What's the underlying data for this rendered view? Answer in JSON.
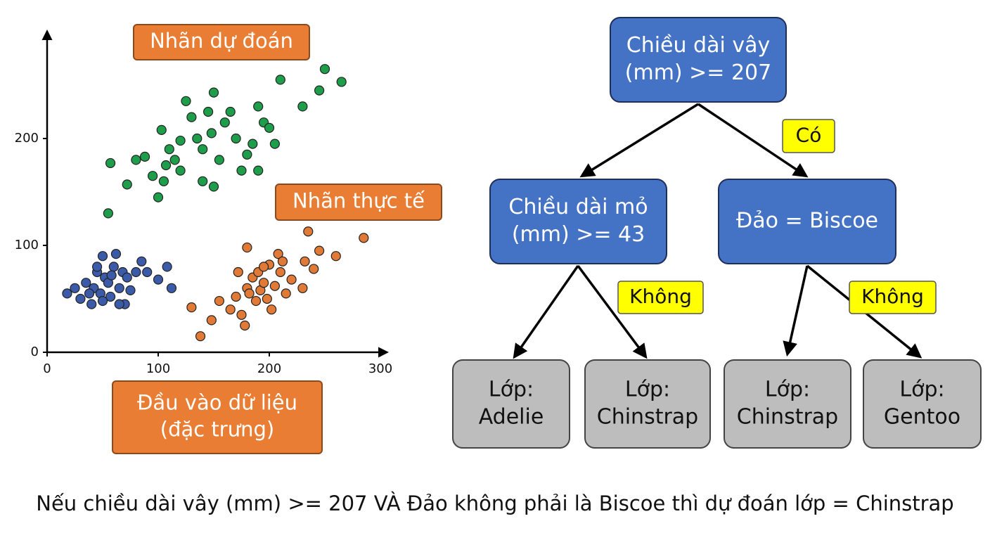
{
  "chart_data": {
    "type": "scatter",
    "xlim": [
      0,
      305
    ],
    "ylim": [
      0,
      300
    ],
    "xticks": [
      0,
      100,
      200,
      300
    ],
    "yticks": [
      0,
      100,
      200
    ],
    "series": [
      {
        "color": "#1e9e4a",
        "x": [
          55,
          57,
          72,
          80,
          88,
          95,
          100,
          105,
          107,
          103,
          110,
          115,
          120,
          125,
          130,
          135,
          140,
          145,
          150,
          148,
          155,
          160,
          165,
          170,
          175,
          185,
          190,
          195,
          200,
          205,
          210,
          230,
          245,
          250,
          265,
          190,
          180,
          140,
          150,
          120
        ],
        "values": [
          130,
          177,
          157,
          180,
          183,
          165,
          145,
          160,
          175,
          208,
          190,
          180,
          198,
          235,
          220,
          200,
          190,
          225,
          243,
          205,
          180,
          215,
          225,
          200,
          170,
          195,
          230,
          215,
          210,
          195,
          255,
          230,
          245,
          265,
          253,
          170,
          185,
          160,
          155,
          170
        ]
      },
      {
        "color": "#3b5ba9",
        "x": [
          18,
          25,
          30,
          35,
          40,
          42,
          45,
          48,
          50,
          52,
          55,
          57,
          60,
          62,
          65,
          68,
          70,
          72,
          75,
          80,
          85,
          50,
          45,
          58,
          100,
          108,
          112,
          90,
          65,
          38
        ],
        "values": [
          55,
          60,
          50,
          65,
          45,
          60,
          75,
          55,
          90,
          70,
          65,
          52,
          80,
          92,
          60,
          75,
          45,
          70,
          58,
          75,
          85,
          48,
          80,
          72,
          68,
          80,
          60,
          75,
          45,
          55
        ]
      },
      {
        "color": "#e07a36",
        "x": [
          138,
          130,
          148,
          155,
          165,
          170,
          175,
          178,
          180,
          180,
          185,
          188,
          190,
          192,
          195,
          198,
          200,
          202,
          205,
          208,
          210,
          212,
          215,
          220,
          230,
          232,
          235,
          240,
          245,
          260,
          285,
          172,
          182,
          195
        ],
        "values": [
          15,
          42,
          30,
          48,
          40,
          52,
          35,
          25,
          98,
          60,
          70,
          48,
          75,
          58,
          65,
          50,
          82,
          40,
          62,
          92,
          75,
          85,
          55,
          68,
          60,
          85,
          113,
          78,
          95,
          90,
          107,
          75,
          55,
          80
        ]
      }
    ]
  },
  "annotations": [
    {
      "lines": [
        "Nhãn dự đoán"
      ]
    },
    {
      "lines": [
        "Nhãn thực tế"
      ]
    },
    {
      "lines": [
        "Đầu vào dữ liệu",
        "(đặc trưng)"
      ]
    }
  ],
  "tree": {
    "nodes": [
      {
        "lines": [
          "Chiều dài vây",
          "(mm) >= 207"
        ]
      },
      {
        "lines": [
          "Chiều dài mỏ",
          "(mm) >= 43"
        ]
      },
      {
        "lines": [
          "Đảo = Biscoe"
        ]
      },
      {
        "lines": [
          "Lớp:",
          "Adelie"
        ]
      },
      {
        "lines": [
          "Lớp:",
          "Chinstrap"
        ]
      },
      {
        "lines": [
          "Lớp:",
          "Chinstrap"
        ]
      },
      {
        "lines": [
          "Lớp:",
          "Gentoo"
        ]
      }
    ],
    "edge_labels": [
      "Có",
      "Không",
      "Không"
    ]
  },
  "caption": "Nếu chiều dài vây (mm) >= 207 VÀ Đảo không phải là Biscoe thì dự đoán lớp = Chinstrap"
}
